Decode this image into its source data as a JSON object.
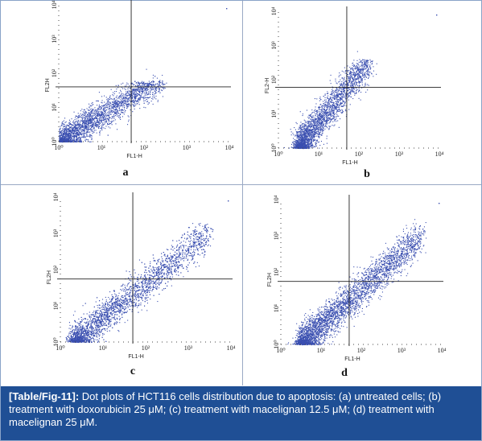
{
  "caption": {
    "label": "[Table/Fig-11]:",
    "text": "Dot plots of HCT116 cells distribution due to apoptosis: (a) untreated cells; (b) treatment with doxorubicin 25 μM; (c) treatment with macelignan 12.5 μM; (d) treatment with macelignan 25 μM."
  },
  "colors": {
    "dots": "#3a4fb0",
    "axis": "#222222",
    "caption_bg": "#1f4f95"
  },
  "chart_data": [
    {
      "type": "scatter",
      "panel": "a",
      "xlabel": "FL1-H",
      "ylabel": "FL2H",
      "x_scale": "log",
      "y_scale": "log",
      "xlim": [
        1,
        10000
      ],
      "ylim": [
        1,
        10000
      ],
      "x_ticks": [
        "10⁰",
        "10¹",
        "10²",
        "10³",
        "10⁴"
      ],
      "y_ticks": [
        "10⁰",
        "10¹",
        "10²",
        "10³",
        "10⁴"
      ],
      "gate": {
        "x": 50,
        "y": 40
      },
      "cloud": {
        "x_range": [
          1,
          300
        ],
        "slope": 0.78,
        "spread": 0.35,
        "cap_y": 60,
        "n": 2600
      }
    },
    {
      "type": "scatter",
      "panel": "b",
      "xlabel": "FL1-H",
      "ylabel": "FL2-H",
      "x_scale": "log",
      "y_scale": "log",
      "xlim": [
        1,
        10000
      ],
      "ylim": [
        1,
        10000
      ],
      "x_ticks": [
        "10⁰",
        "10¹",
        "10²",
        "10³",
        "10⁴"
      ],
      "y_ticks": [
        "10⁰",
        "10¹",
        "10²",
        "10³",
        "10⁴"
      ],
      "gate": {
        "x": 50,
        "y": 60
      },
      "cloud": {
        "x_range": [
          3,
          200
        ],
        "slope": 1.45,
        "spread": 0.42,
        "cap_y": 400,
        "n": 2600
      }
    },
    {
      "type": "scatter",
      "panel": "c",
      "xlabel": "FL1-H",
      "ylabel": "FL2H",
      "x_scale": "log",
      "y_scale": "log",
      "xlim": [
        1,
        10000
      ],
      "ylim": [
        1,
        10000
      ],
      "x_ticks": [
        "10⁰",
        "10¹",
        "10²",
        "10³",
        "10⁴"
      ],
      "y_ticks": [
        "10⁰",
        "10¹",
        "10²",
        "10³",
        "10⁴"
      ],
      "gate": {
        "x": 50,
        "y": 55
      },
      "cloud": {
        "x_range": [
          2,
          3000
        ],
        "slope": 0.95,
        "spread": 0.38,
        "cap_y": 2000,
        "n": 3400
      }
    },
    {
      "type": "scatter",
      "panel": "d",
      "xlabel": "FL1-H",
      "ylabel": "FL2H",
      "x_scale": "log",
      "y_scale": "log",
      "xlim": [
        1,
        10000
      ],
      "ylim": [
        1,
        10000
      ],
      "x_ticks": [
        "10⁰",
        "10¹",
        "10²",
        "10³",
        "10⁴"
      ],
      "y_ticks": [
        "10⁰",
        "10¹",
        "10²",
        "10³",
        "10⁴"
      ],
      "gate": {
        "x": 50,
        "y": 55
      },
      "cloud": {
        "x_range": [
          3,
          3000
        ],
        "slope": 1.0,
        "spread": 0.4,
        "cap_y": 3000,
        "n": 3400
      }
    }
  ]
}
